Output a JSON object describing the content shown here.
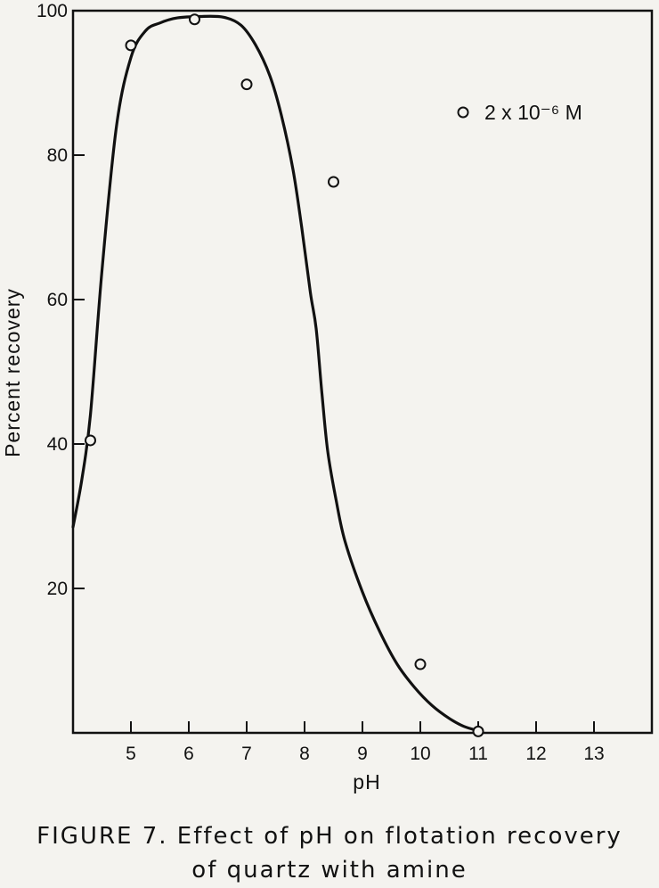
{
  "figure": {
    "caption_line1": "FIGURE 7.  Effect of pH on flotation recovery",
    "caption_line2": "of quartz with amine"
  },
  "colors": {
    "ink": "#111111",
    "paper": "#f4f3ef"
  },
  "chart_data": {
    "type": "scatter",
    "title": "",
    "xlabel": "pH",
    "ylabel": "Percent recovery",
    "xlim": [
      4,
      14
    ],
    "ylim": [
      0,
      100
    ],
    "xticks": [
      5,
      6,
      7,
      8,
      9,
      10,
      11,
      12,
      13
    ],
    "yticks": [
      20,
      40,
      60,
      80,
      100
    ],
    "grid": false,
    "legend_position": "top-right",
    "series": [
      {
        "name": "2 x 10⁻⁶ M",
        "marker": "open-circle",
        "x": [
          4.3,
          5.0,
          6.1,
          7.0,
          8.5,
          10.0,
          11.0
        ],
        "y": [
          40.5,
          95.2,
          98.8,
          89.8,
          76.3,
          9.5,
          0.2
        ]
      }
    ],
    "fitted_curve": {
      "x": [
        4.0,
        4.15,
        4.3,
        4.5,
        4.75,
        5.0,
        5.25,
        5.5,
        5.8,
        6.2,
        6.6,
        6.9,
        7.15,
        7.4,
        7.6,
        7.8,
        7.95,
        8.1,
        8.2,
        8.3,
        8.4,
        8.55,
        8.7,
        9.0,
        9.3,
        9.6,
        9.9,
        10.2,
        10.5,
        10.75,
        11.0
      ],
      "y": [
        28.5,
        35,
        44,
        64,
        84,
        93.5,
        97.2,
        98.3,
        99.0,
        99.2,
        99.1,
        98.0,
        95.3,
        91,
        85.5,
        78,
        70,
        61,
        56,
        47,
        39,
        32,
        26.5,
        19.5,
        14,
        9.5,
        6.3,
        3.8,
        2.0,
        0.9,
        0.3
      ]
    }
  }
}
